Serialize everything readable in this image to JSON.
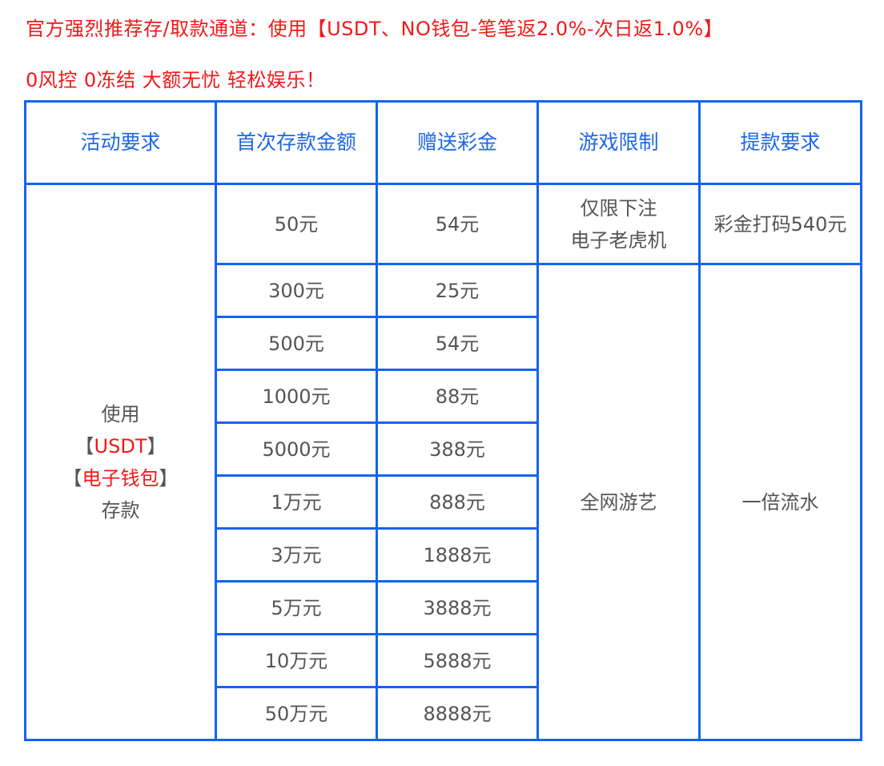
{
  "notice": {
    "line1": "官方强烈推荐存/取款通道：使用【USDT、NO钱包-笔笔返2.0%-次日返1.0%】",
    "line2": "0风控 0冻结 大额无忧 轻松娱乐！"
  },
  "table": {
    "headers": [
      "活动要求",
      "首次存款金额",
      "赠送彩金",
      "游戏限制",
      "提款要求"
    ],
    "activity": {
      "line1": "使用",
      "usdt_prefix": "【",
      "usdt": "USDT",
      "usdt_suffix": "】",
      "wallet_prefix": "【",
      "wallet": "电子钱包",
      "wallet_suffix": "】",
      "line4": "存款"
    },
    "first_row": {
      "deposit": "50元",
      "bonus": "54元",
      "game_line1": "仅限下注",
      "game_line2": "电子老虎机",
      "withdraw": "彩金打码540元"
    },
    "rows": [
      {
        "deposit": "300元",
        "bonus": "25元"
      },
      {
        "deposit": "500元",
        "bonus": "54元"
      },
      {
        "deposit": "1000元",
        "bonus": "88元"
      },
      {
        "deposit": "5000元",
        "bonus": "388元"
      },
      {
        "deposit": "1万元",
        "bonus": "888元"
      },
      {
        "deposit": "3万元",
        "bonus": "1888元"
      },
      {
        "deposit": "5万元",
        "bonus": "3888元"
      },
      {
        "deposit": "10万元",
        "bonus": "5888元"
      },
      {
        "deposit": "50万元",
        "bonus": "8888元"
      }
    ],
    "game_limit": "全网游艺",
    "withdraw_requirement": "一倍流水"
  },
  "colors": {
    "border": "#1463f0",
    "header_text": "#1f68e6",
    "highlight": "#f21818",
    "body_text": "#555555"
  }
}
